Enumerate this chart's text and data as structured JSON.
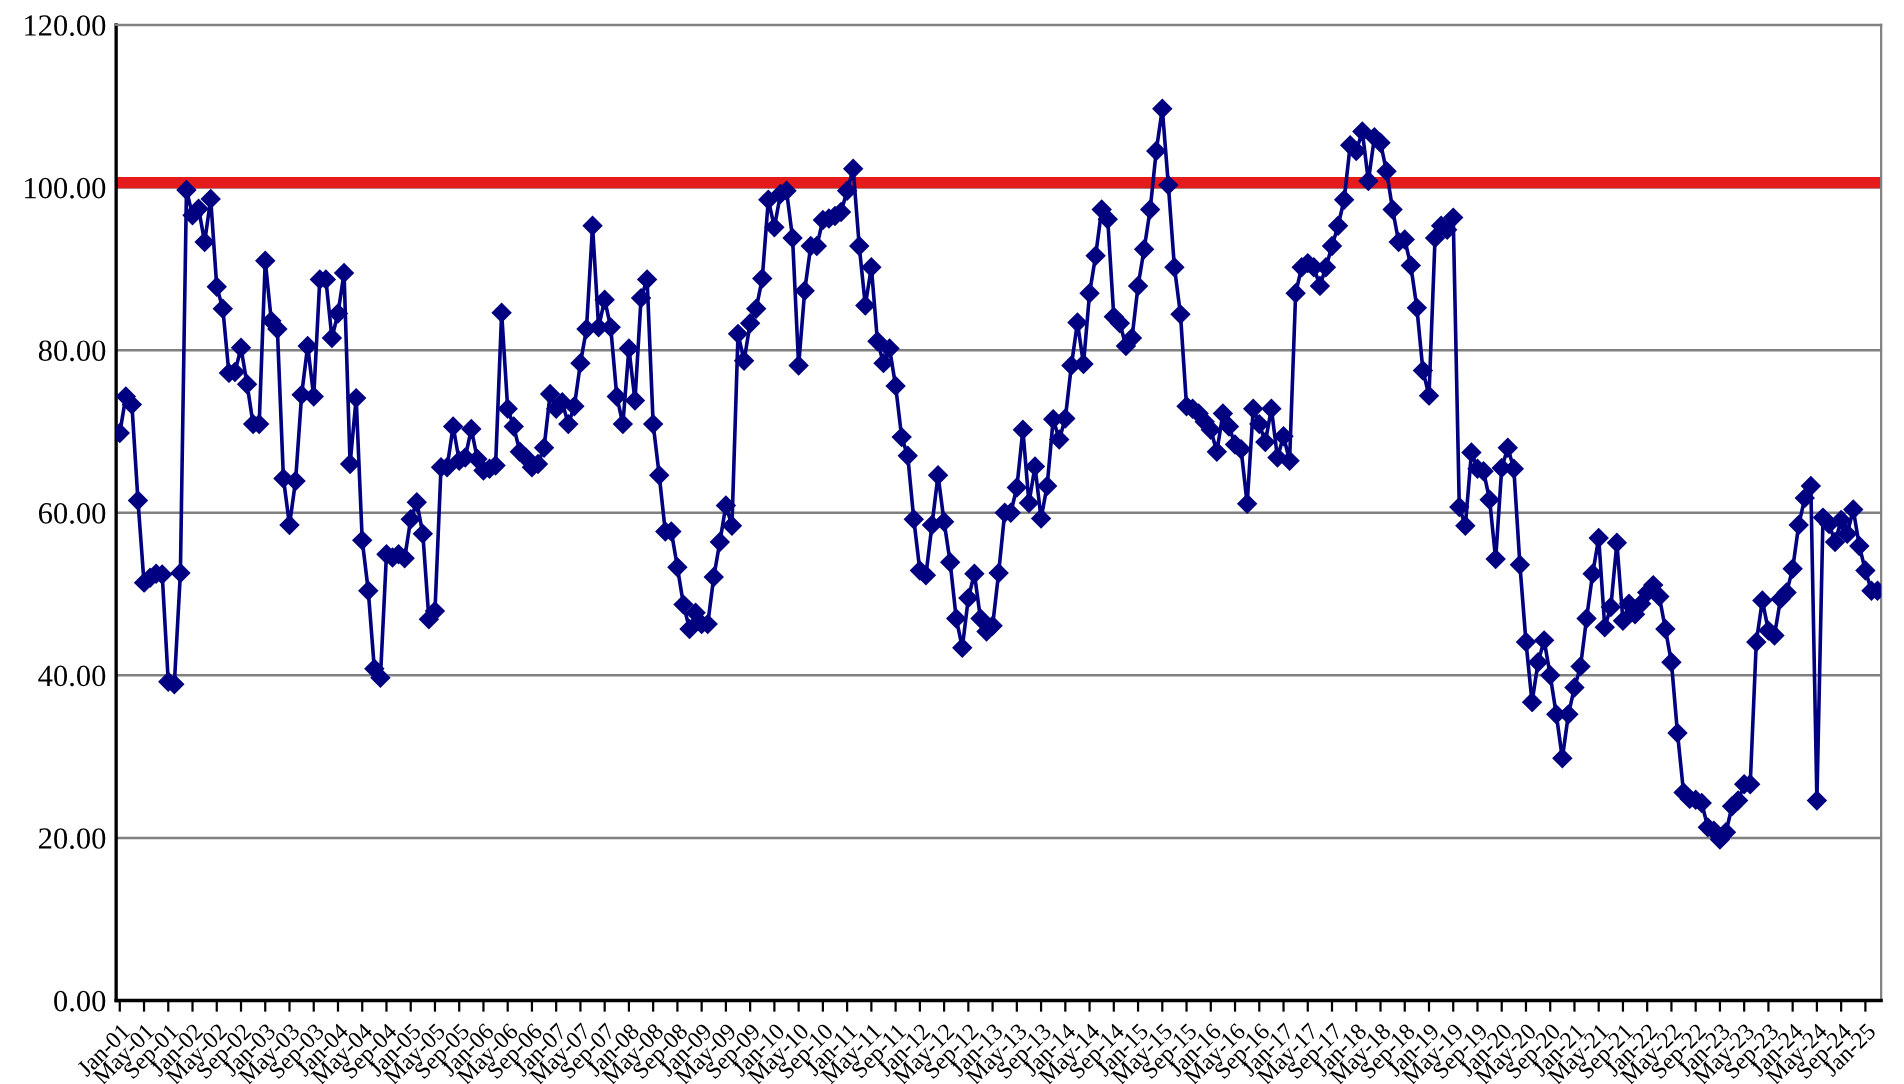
{
  "chart_data": {
    "type": "line",
    "categories": [
      "Jan-01",
      null,
      null,
      null,
      "May-01",
      null,
      null,
      null,
      "Sep-01",
      null,
      null,
      null,
      "Jan-02",
      null,
      null,
      null,
      "May-02",
      null,
      null,
      null,
      "Sep-02",
      null,
      null,
      null,
      "Jan-03",
      null,
      null,
      null,
      "May-03",
      null,
      null,
      null,
      "Sep-03",
      null,
      null,
      null,
      "Jan-04",
      null,
      null,
      null,
      "May-04",
      null,
      null,
      null,
      "Sep-04",
      null,
      null,
      null,
      "Jan-05",
      null,
      null,
      null,
      "May-05",
      null,
      null,
      null,
      "Sep-05",
      null,
      null,
      null,
      "Jan-06",
      null,
      null,
      null,
      "May-06",
      null,
      null,
      null,
      "Sep-06",
      null,
      null,
      null,
      "Jan-07",
      null,
      null,
      null,
      "May-07",
      null,
      null,
      null,
      "Sep-07",
      null,
      null,
      null,
      "Jan-08",
      null,
      null,
      null,
      "May-08",
      null,
      null,
      null,
      "Sep-08",
      null,
      null,
      null,
      "Jan-09",
      null,
      null,
      null,
      "May-09",
      null,
      null,
      null,
      "Sep-09",
      null,
      null,
      null,
      "Jan-10",
      null,
      null,
      null,
      "May-10",
      null,
      null,
      null,
      "Sep-10",
      null,
      null,
      null,
      "Jan-11",
      null,
      null,
      null,
      "May-11",
      null,
      null,
      null,
      "Sep-11",
      null,
      null,
      null,
      "Jan-12",
      null,
      null,
      null,
      "May-12",
      null,
      null,
      null,
      "Sep-12",
      null,
      null,
      null,
      "Jan-13",
      null,
      null,
      null,
      "May-13",
      null,
      null,
      null,
      "Sep-13",
      null,
      null,
      null,
      "Jan-14",
      null,
      null,
      null,
      "May-14",
      null,
      null,
      null,
      "Sep-14",
      null,
      null,
      null,
      "Jan-15",
      null,
      null,
      null,
      "May-15",
      null,
      null,
      null,
      "Sep-15",
      null,
      null,
      null,
      "Jan-16",
      null,
      null,
      null,
      "May-16",
      null,
      null,
      null,
      "Sep-16",
      null,
      null,
      null,
      "Jan-17",
      null,
      null,
      null,
      "May-17",
      null,
      null,
      null,
      "Sep-17",
      null,
      null,
      null,
      "Jan-18",
      null,
      null,
      null,
      "May-18",
      null,
      null,
      null,
      "Sep-18",
      null,
      null,
      null,
      "Jan-19",
      null,
      null,
      null,
      "May-19",
      null,
      null,
      null,
      "Sep-19",
      null,
      null,
      null,
      "Jan-20",
      null,
      null,
      null,
      "May-20",
      null,
      null,
      null,
      "Sep-20",
      null,
      null,
      null,
      "Jan-21",
      null,
      null,
      null,
      "May-21",
      null,
      null,
      null,
      "Sep-21",
      null,
      null,
      null,
      "Jan-22",
      null,
      null,
      null,
      "May-22",
      null,
      null,
      null,
      "Sep-22",
      null,
      null,
      null,
      "Jan-23",
      null,
      null,
      null,
      "May-23",
      null,
      null,
      null,
      "Sep-23",
      null,
      null,
      null,
      "Jan-24",
      null,
      null,
      null,
      "May-24",
      null,
      null,
      null,
      "Sep-24",
      null,
      null,
      null,
      "Jan-25",
      null,
      null
    ],
    "series": [
      {
        "color": "#000080",
        "values": [
          69.8,
          74.3,
          73.3,
          61.5,
          51.4,
          52.0,
          52.5,
          52.4,
          39.2,
          38.9,
          52.6,
          99.7,
          96.6,
          97.4,
          93.3,
          98.6,
          87.8,
          85.1,
          77.2,
          77.3,
          80.3,
          75.8,
          70.9,
          70.9,
          91.0,
          83.6,
          82.6,
          64.2,
          58.5,
          63.9,
          74.5,
          80.5,
          74.3,
          88.7,
          88.7,
          81.5,
          84.5,
          89.5,
          66.0,
          74.1,
          56.6,
          50.4,
          40.8,
          39.7,
          54.9,
          54.5,
          54.9,
          54.4,
          59.2,
          61.3,
          57.4,
          46.9,
          47.9,
          65.6,
          65.6,
          70.6,
          66.4,
          66.8,
          70.3,
          66.6,
          65.2,
          65.4,
          65.8,
          84.6,
          72.8,
          70.6,
          67.5,
          66.8,
          65.6,
          66.0,
          68.0,
          74.6,
          72.8,
          73.6,
          70.9,
          73.1,
          78.4,
          82.6,
          95.3,
          82.8,
          86.2,
          82.8,
          74.3,
          70.9,
          80.2,
          73.8,
          86.4,
          88.7,
          70.9,
          64.6,
          57.7,
          57.7,
          53.3,
          48.7,
          45.7,
          47.7,
          46.3,
          46.3,
          52.1,
          56.4,
          60.9,
          58.4,
          82.0,
          78.7,
          83.3,
          85.1,
          88.8,
          98.5,
          95.1,
          99.2,
          99.6,
          93.8,
          78.1,
          87.3,
          92.8,
          92.8,
          96.0,
          96.2,
          96.5,
          97.0,
          99.6,
          102.3,
          92.8,
          85.5,
          90.2,
          81.1,
          78.4,
          80.2,
          75.6,
          69.3,
          67.0,
          59.2,
          52.9,
          52.3,
          58.5,
          64.6,
          58.9,
          53.9,
          47.0,
          43.4,
          49.5,
          52.5,
          47.0,
          45.4,
          46.1,
          52.6,
          60.0,
          60.0,
          63.1,
          70.2,
          61.2,
          65.7,
          59.3,
          63.3,
          71.5,
          69.0,
          71.6,
          78.1,
          83.4,
          78.3,
          87.0,
          91.6,
          97.3,
          96.1,
          84.1,
          83.3,
          80.5,
          81.5,
          87.9,
          92.4,
          97.3,
          104.5,
          109.7,
          100.3,
          90.2,
          84.4,
          73.1,
          72.8,
          72.2,
          71.2,
          70.2,
          67.5,
          72.2,
          70.6,
          68.4,
          67.8,
          61.1,
          72.8,
          70.9,
          68.7,
          72.8,
          66.8,
          69.4,
          66.4,
          87.0,
          90.2,
          90.7,
          90.2,
          87.9,
          90.2,
          92.8,
          95.3,
          98.5,
          105.2,
          104.5,
          106.9,
          100.8,
          106.2,
          105.5,
          102.0,
          97.3,
          93.3,
          93.6,
          90.4,
          85.2,
          77.5,
          74.4,
          93.8,
          95.3,
          94.8,
          96.3,
          60.7,
          58.4,
          67.4,
          65.4,
          65.1,
          61.6,
          54.3,
          65.5,
          68.0,
          65.4,
          53.6,
          44.1,
          36.7,
          41.6,
          44.3,
          40.0,
          35.2,
          29.8,
          35.2,
          38.5,
          41.1,
          47.0,
          52.5,
          56.9,
          45.9,
          48.4,
          56.3,
          46.7,
          48.8,
          47.5,
          48.8,
          50.2,
          51.1,
          49.7,
          45.7,
          41.6,
          32.9,
          25.6,
          24.8,
          24.7,
          24.3,
          21.3,
          20.9,
          19.8,
          20.7,
          23.9,
          24.6,
          26.6,
          26.6,
          44.1,
          49.2,
          45.5,
          44.9,
          49.4,
          50.2,
          53.1,
          58.5,
          61.8,
          63.3,
          24.6,
          59.4,
          58.6,
          56.4,
          59.1,
          57.4,
          60.4,
          55.9,
          52.9,
          50.4,
          50.4
        ]
      }
    ],
    "ylim": [
      0,
      120
    ],
    "yticks": [
      {
        "value": 0,
        "label": "0.00"
      },
      {
        "value": 20,
        "label": "20.00"
      },
      {
        "value": 40,
        "label": "40.00"
      },
      {
        "value": 60,
        "label": "60.00"
      },
      {
        "value": 80,
        "label": "80.00"
      },
      {
        "value": 100,
        "label": "100.00"
      },
      {
        "value": 120,
        "label": "120.00"
      }
    ],
    "ref_lines": [
      {
        "axis": "y",
        "value": 100.6,
        "color": "#e41a1c",
        "line_style": "solid"
      }
    ],
    "grid": "y",
    "marker": "diamond",
    "line_style": "solid",
    "legend": false
  }
}
